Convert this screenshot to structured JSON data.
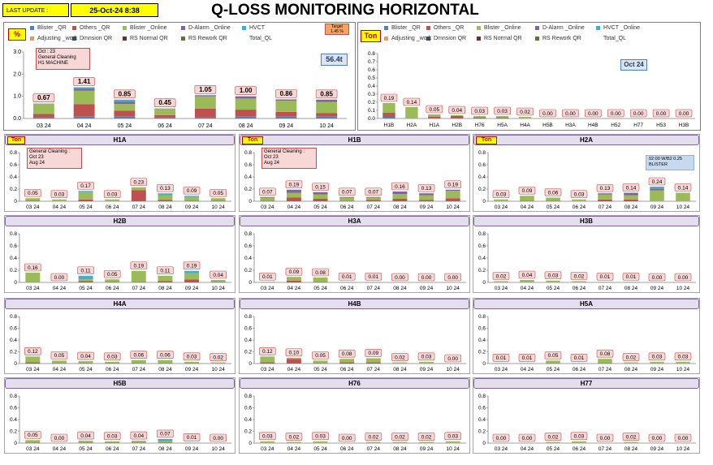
{
  "header": {
    "last_update_label": "LAST UPDATE :",
    "last_update_value": "25-Oct-24 8:38",
    "title": "Q-LOSS MONITORING HORIZONTAL"
  },
  "colors": {
    "Blister _QR": "#4f81bd",
    "Others _QR": "#c0504d",
    "Blister _Online": "#9bbb59",
    "D-Alarm _Online": "#8064a2",
    "HVCT": "#4bacc6",
    "Adjusting _work": "#f79646",
    "Dmnsion QR": "#2c4d75",
    "RS Normal QR": "#772c2a",
    "RS Rework QR": "#5f7530",
    "Total_QL": "#ffffff"
  },
  "left_legend": [
    "Blister _QR",
    "Others _QR",
    "Blister _Online",
    "D-Alarm _Online",
    "HVCT",
    "Adjusting _work",
    "Dmnsion QR",
    "RS Normal QR",
    "RS Rework QR",
    "Total_QL"
  ],
  "right_legend": [
    "Blister _QR",
    "Others _QR",
    "Blister _Online",
    "D-Alarm _Online",
    "HVCT _Online",
    "Adjusting _work",
    "Dmnsion QR",
    "RS Normal QR",
    "RS Rework QR",
    "Total_QL"
  ],
  "left_panel": {
    "unit": "%",
    "target_label": "Target",
    "target_value": "1.45 %",
    "total_value": "56.4t",
    "note": [
      "Oct : 23",
      "General Cleaning",
      "H1 MACHINE"
    ]
  },
  "right_panel": {
    "unit": "Ton",
    "month_label": "Oct 24"
  },
  "small_panels": {
    "unit": "Ton",
    "h1a_note": [
      "General Cleaning :",
      "Oct 23",
      "Aug 24"
    ],
    "h1b_note": [
      "General Cleaning :",
      "Oct 23",
      "Aug 24"
    ],
    "h2a_note": [
      "02:00 W/B2 0.25",
      "BLISTER"
    ]
  },
  "chart_data": [
    {
      "id": "overall_trend",
      "type": "bar",
      "stacked": true,
      "title": "",
      "ylabel": "%",
      "ylim": [
        0,
        3
      ],
      "yticks": [
        "0.0",
        "1.0",
        "2.0",
        "3.0"
      ],
      "categories": [
        "03 24",
        "04 24",
        "05 24",
        "06 24",
        "07 24",
        "08 24",
        "09 24",
        "10 24"
      ],
      "totals": [
        0.67,
        1.41,
        0.85,
        0.45,
        1.05,
        1.0,
        0.86,
        0.85
      ],
      "total_labels": [
        "0.67",
        "1.41",
        "0.85",
        "0.45",
        "1.05",
        "1.00",
        "0.86",
        "0.85"
      ],
      "series": [
        {
          "name": "Blister _QR",
          "values": [
            0.05,
            0.1,
            0.1,
            0.05,
            0.05,
            0.1,
            0.1,
            0.1
          ]
        },
        {
          "name": "Others _QR",
          "values": [
            0.15,
            0.55,
            0.25,
            0.1,
            0.4,
            0.3,
            0.2,
            0.15
          ]
        },
        {
          "name": "Blister _Online",
          "values": [
            0.45,
            0.6,
            0.3,
            0.28,
            0.55,
            0.5,
            0.5,
            0.5
          ]
        },
        {
          "name": "D-Alarm _Online",
          "values": [
            0.02,
            0.1,
            0.1,
            0.02,
            0.05,
            0.1,
            0.06,
            0.1
          ]
        },
        {
          "name": "HVCT",
          "values": [
            0.0,
            0.06,
            0.1,
            0.0,
            0.0,
            0.0,
            0.0,
            0.0
          ]
        }
      ]
    },
    {
      "id": "oct24_by_machine",
      "type": "bar",
      "stacked": true,
      "title": "",
      "ylabel": "Ton",
      "ylim": [
        0,
        0.8
      ],
      "yticks": [
        "0.0",
        "0.1",
        "0.2",
        "0.3",
        "0.4",
        "0.5",
        "0.6",
        "0.7",
        "0.8"
      ],
      "categories": [
        "H1B",
        "H2A",
        "H1A",
        "H2B",
        "H76",
        "H5A",
        "H4A",
        "H5B",
        "H3A",
        "H4B",
        "H52",
        "H77",
        "H53",
        "H3B"
      ],
      "totals": [
        0.19,
        0.14,
        0.05,
        0.04,
        0.03,
        0.03,
        0.02,
        0.0,
        0.0,
        0.0,
        0.0,
        0.0,
        0.0,
        0.0
      ],
      "total_labels": [
        "0.19",
        "0.14",
        "0.05",
        "0.04",
        "0.03",
        "0.03",
        "0.02",
        "0.00",
        "0.00",
        "0.00",
        "0.00",
        "0.00",
        "0.00",
        "0.00"
      ],
      "series": [
        {
          "name": "Blister _QR",
          "values": [
            0.02,
            0.0,
            0.01,
            0.01,
            0.0,
            0.01,
            0.0,
            0,
            0,
            0,
            0,
            0,
            0,
            0
          ]
        },
        {
          "name": "Others _QR",
          "values": [
            0.05,
            0.0,
            0.01,
            0.02,
            0.01,
            0.0,
            0.0,
            0,
            0,
            0,
            0,
            0,
            0,
            0
          ]
        },
        {
          "name": "Blister _Online",
          "values": [
            0.12,
            0.14,
            0.03,
            0.01,
            0.02,
            0.02,
            0.02,
            0,
            0,
            0,
            0,
            0,
            0,
            0
          ]
        }
      ]
    },
    {
      "id": "H1A",
      "type": "bar",
      "title": "H1A",
      "ylim": [
        0,
        0.8
      ],
      "yticks": [
        "0",
        "0.2",
        "0.4",
        "0.6",
        "0.8"
      ],
      "categories": [
        "03 24",
        "04 24",
        "05 24",
        "06 24",
        "07 24",
        "08 24",
        "09 24",
        "10 24"
      ],
      "totals": [
        0.05,
        0.03,
        0.17,
        0.03,
        0.23,
        0.13,
        0.09,
        0.05
      ],
      "total_labels": [
        "0.05",
        "0.03",
        "0.17",
        "0.03",
        "0.23",
        "0.13",
        "0.09",
        "0.05"
      ],
      "series": [
        {
          "name": "Others _QR",
          "values": [
            0.01,
            0.0,
            0.03,
            0.0,
            0.18,
            0.02,
            0.01,
            0.01
          ]
        },
        {
          "name": "Blister _Online",
          "values": [
            0.04,
            0.03,
            0.12,
            0.03,
            0.05,
            0.08,
            0.06,
            0.04
          ]
        },
        {
          "name": "HVCT",
          "values": [
            0,
            0,
            0.02,
            0,
            0,
            0.03,
            0.02,
            0
          ]
        }
      ]
    },
    {
      "id": "H1B",
      "type": "bar",
      "title": "H1B",
      "ylim": [
        0,
        0.8
      ],
      "yticks": [
        "0",
        "0.2",
        "0.4",
        "0.6",
        "0.8"
      ],
      "categories": [
        "03 24",
        "04 24",
        "05 24",
        "06 24",
        "07 24",
        "08 24",
        "09 24",
        "10 24"
      ],
      "totals": [
        0.07,
        0.19,
        0.15,
        0.07,
        0.07,
        0.16,
        0.13,
        0.19
      ],
      "total_labels": [
        "0.07",
        "0.19",
        "0.15",
        "0.07",
        "0.07",
        "0.16",
        "0.13",
        "0.19"
      ],
      "series": [
        {
          "name": "Others _QR",
          "values": [
            0.01,
            0.06,
            0.04,
            0.01,
            0.02,
            0.04,
            0.02,
            0.05
          ]
        },
        {
          "name": "Blister _Online",
          "values": [
            0.05,
            0.08,
            0.07,
            0.05,
            0.04,
            0.08,
            0.08,
            0.12
          ]
        },
        {
          "name": "D-Alarm _Online",
          "values": [
            0.01,
            0.05,
            0.04,
            0.01,
            0.01,
            0.04,
            0.03,
            0.02
          ]
        }
      ]
    },
    {
      "id": "H2A",
      "type": "bar",
      "title": "H2A",
      "ylim": [
        0,
        0.8
      ],
      "yticks": [
        "0",
        "0.2",
        "0.4",
        "0.6",
        "0.8"
      ],
      "categories": [
        "03 24",
        "04 24",
        "05 24",
        "06 24",
        "07 24",
        "08 24",
        "09 24",
        "10 24"
      ],
      "totals": [
        0.03,
        0.09,
        0.06,
        0.03,
        0.13,
        0.14,
        0.24,
        0.14
      ],
      "total_labels": [
        "0.03",
        "0.09",
        "0.06",
        "0.03",
        "0.13",
        "0.14",
        "0.24",
        "0.14"
      ],
      "series": [
        {
          "name": "Others _QR",
          "values": [
            0.0,
            0.01,
            0.01,
            0.0,
            0.03,
            0.03,
            0.0,
            0.0
          ]
        },
        {
          "name": "Blister _Online",
          "values": [
            0.03,
            0.08,
            0.05,
            0.03,
            0.08,
            0.07,
            0.18,
            0.14
          ]
        },
        {
          "name": "D-Alarm _Online",
          "values": [
            0,
            0,
            0,
            0,
            0.02,
            0.04,
            0.03,
            0
          ]
        },
        {
          "name": "HVCT",
          "values": [
            0,
            0,
            0,
            0,
            0,
            0,
            0.03,
            0
          ]
        }
      ]
    },
    {
      "id": "H2B",
      "type": "bar",
      "title": "H2B",
      "ylim": [
        0,
        0.8
      ],
      "yticks": [
        "0",
        "0.2",
        "0.4",
        "0.6",
        "0.8"
      ],
      "categories": [
        "03 24",
        "04 24",
        "05 24",
        "06 24",
        "07 24",
        "08 24",
        "09 24",
        "10 24"
      ],
      "totals": [
        0.16,
        0.0,
        0.11,
        0.05,
        0.19,
        0.11,
        0.19,
        0.04
      ],
      "total_labels": [
        "0.16",
        "0.00",
        "0.11",
        "0.05",
        "0.19",
        "0.11",
        "0.19",
        "0.04"
      ],
      "series": [
        {
          "name": "Others _QR",
          "values": [
            0.0,
            0.0,
            0.02,
            0.01,
            0.01,
            0.02,
            0.05,
            0.01
          ]
        },
        {
          "name": "Blister _Online",
          "values": [
            0.16,
            0.0,
            0.03,
            0.04,
            0.18,
            0.09,
            0.1,
            0.03
          ]
        },
        {
          "name": "HVCT",
          "values": [
            0,
            0,
            0.06,
            0,
            0,
            0,
            0.04,
            0
          ]
        }
      ]
    },
    {
      "id": "H3A",
      "type": "bar",
      "title": "H3A",
      "ylim": [
        0,
        0.8
      ],
      "yticks": [
        "0",
        "0.2",
        "0.4",
        "0.6",
        "0.8"
      ],
      "categories": [
        "03 24",
        "04 24",
        "05 24",
        "06 24",
        "07 24",
        "08 24",
        "09 24",
        "10 24"
      ],
      "totals": [
        0.01,
        0.09,
        0.08,
        0.01,
        0.01,
        0.0,
        0.0,
        0.0
      ],
      "total_labels": [
        "0.01",
        "0.09",
        "0.08",
        "0.01",
        "0.01",
        "0.00",
        "0.00",
        "0.00"
      ],
      "series": [
        {
          "name": "Others _QR",
          "values": [
            0.0,
            0.03,
            0.01,
            0.0,
            0.0,
            0,
            0,
            0
          ]
        },
        {
          "name": "Blister _Online",
          "values": [
            0.01,
            0.06,
            0.07,
            0.01,
            0.01,
            0,
            0,
            0
          ]
        }
      ]
    },
    {
      "id": "H3B",
      "type": "bar",
      "title": "H3B",
      "ylim": [
        0,
        0.8
      ],
      "yticks": [
        "0",
        "0.2",
        "0.4",
        "0.6",
        "0.8"
      ],
      "categories": [
        "03 24",
        "04 24",
        "05 24",
        "06 24",
        "07 24",
        "08 24",
        "09 24",
        "10 24"
      ],
      "totals": [
        0.02,
        0.04,
        0.03,
        0.02,
        0.01,
        0.01,
        0.0,
        0.0
      ],
      "total_labels": [
        "0.02",
        "0.04",
        "0.03",
        "0.02",
        "0.01",
        "0.01",
        "0.00",
        "0.00"
      ],
      "series": [
        {
          "name": "Blister _Online",
          "values": [
            0.02,
            0.04,
            0.03,
            0.02,
            0.01,
            0.01,
            0,
            0
          ]
        }
      ]
    },
    {
      "id": "H4A",
      "type": "bar",
      "title": "H4A",
      "ylim": [
        0,
        0.8
      ],
      "yticks": [
        "0",
        "0.2",
        "0.4",
        "0.6",
        "0.8"
      ],
      "categories": [
        "03 24",
        "04 24",
        "05 24",
        "06 24",
        "07 24",
        "08 24",
        "09 24",
        "10 24"
      ],
      "totals": [
        0.12,
        0.05,
        0.04,
        0.03,
        0.06,
        0.06,
        0.03,
        0.02
      ],
      "total_labels": [
        "0.12",
        "0.05",
        "0.04",
        "0.03",
        "0.06",
        "0.06",
        "0.03",
        "0.02"
      ],
      "series": [
        {
          "name": "Others _QR",
          "values": [
            0.02,
            0.01,
            0.01,
            0.01,
            0.01,
            0.01,
            0.01,
            0.0
          ]
        },
        {
          "name": "Blister _Online",
          "values": [
            0.1,
            0.04,
            0.03,
            0.02,
            0.05,
            0.05,
            0.02,
            0.02
          ]
        }
      ]
    },
    {
      "id": "H4B",
      "type": "bar",
      "title": "H4B",
      "ylim": [
        0,
        0.8
      ],
      "yticks": [
        "0",
        "0.2",
        "0.4",
        "0.6",
        "0.8"
      ],
      "categories": [
        "03 24",
        "04 24",
        "05 24",
        "06 24",
        "07 24",
        "08 24",
        "09 24",
        "10 24"
      ],
      "totals": [
        0.12,
        0.1,
        0.05,
        0.08,
        0.09,
        0.02,
        0.03,
        0.0
      ],
      "total_labels": [
        "0.12",
        "0.10",
        "0.05",
        "0.08",
        "0.09",
        "0.02",
        "0.03",
        "0.00"
      ],
      "series": [
        {
          "name": "Others _QR",
          "values": [
            0.02,
            0.08,
            0.01,
            0.02,
            0.02,
            0.0,
            0.0,
            0
          ]
        },
        {
          "name": "Blister _Online",
          "values": [
            0.1,
            0.02,
            0.04,
            0.06,
            0.07,
            0.02,
            0.03,
            0
          ]
        }
      ]
    },
    {
      "id": "H5A",
      "type": "bar",
      "title": "H5A",
      "ylim": [
        0,
        0.8
      ],
      "yticks": [
        "0",
        "0.2",
        "0.4",
        "0.6",
        "0.8"
      ],
      "categories": [
        "03 24",
        "04 24",
        "05 24",
        "06 24",
        "07 24",
        "08 24",
        "09 24",
        "10 24"
      ],
      "totals": [
        0.01,
        0.01,
        0.05,
        0.01,
        0.08,
        0.02,
        0.03,
        0.03
      ],
      "total_labels": [
        "0.01",
        "0.01",
        "0.05",
        "0.01",
        "0.08",
        "0.02",
        "0.03",
        "0.03"
      ],
      "series": [
        {
          "name": "Others _QR",
          "values": [
            0.0,
            0.0,
            0.01,
            0.0,
            0.01,
            0.0,
            0.0,
            0.0
          ]
        },
        {
          "name": "Blister _Online",
          "values": [
            0.01,
            0.01,
            0.04,
            0.01,
            0.07,
            0.02,
            0.03,
            0.03
          ]
        }
      ]
    },
    {
      "id": "H5B",
      "type": "bar",
      "title": "H5B",
      "ylim": [
        0,
        0.8
      ],
      "yticks": [
        "0",
        "0.2",
        "0.4",
        "0.6",
        "0.8"
      ],
      "categories": [
        "03 24",
        "04 24",
        "05 24",
        "06 24",
        "07 24",
        "08 24",
        "09 24",
        "10 24"
      ],
      "totals": [
        0.05,
        0.0,
        0.04,
        0.03,
        0.04,
        0.07,
        0.01,
        0.0
      ],
      "total_labels": [
        "0.05",
        "0.00",
        "0.04",
        "0.03",
        "0.04",
        "0.07",
        "0.01",
        "0.00"
      ],
      "series": [
        {
          "name": "Others _QR",
          "values": [
            0.01,
            0,
            0.01,
            0.01,
            0.01,
            0.01,
            0.0,
            0
          ]
        },
        {
          "name": "Blister _Online",
          "values": [
            0.04,
            0,
            0.03,
            0.02,
            0.03,
            0.02,
            0.01,
            0
          ]
        },
        {
          "name": "HVCT",
          "values": [
            0,
            0,
            0,
            0,
            0,
            0.04,
            0,
            0
          ]
        }
      ]
    },
    {
      "id": "H76",
      "type": "bar",
      "title": "H76",
      "ylim": [
        0,
        0.8
      ],
      "yticks": [
        "0",
        "0.2",
        "0.4",
        "0.6",
        "0.8"
      ],
      "categories": [
        "03 24",
        "04 24",
        "05 24",
        "06 24",
        "07 24",
        "08 24",
        "09 24",
        "10 24"
      ],
      "totals": [
        0.03,
        0.02,
        0.03,
        0.0,
        0.02,
        0.02,
        0.02,
        0.03
      ],
      "total_labels": [
        "0.03",
        "0.02",
        "0.03",
        "0.00",
        "0.02",
        "0.02",
        "0.02",
        "0.03"
      ],
      "series": [
        {
          "name": "Blister _Online",
          "values": [
            0.03,
            0.02,
            0.03,
            0.0,
            0.02,
            0.02,
            0.02,
            0.03
          ]
        }
      ]
    },
    {
      "id": "H77",
      "type": "bar",
      "title": "H77",
      "ylim": [
        0,
        0.8
      ],
      "yticks": [
        "0",
        "0.2",
        "0.4",
        "0.6",
        "0.8"
      ],
      "categories": [
        "03 24",
        "04 24",
        "05 24",
        "06 24",
        "07 24",
        "08 24",
        "09 24",
        "10 24"
      ],
      "totals": [
        0.0,
        0.0,
        0.02,
        0.03,
        0.0,
        0.02,
        0.0,
        0.0
      ],
      "total_labels": [
        "0.00",
        "0.00",
        "0.02",
        "0.03",
        "0.00",
        "0.02",
        "0.00",
        "0.00"
      ],
      "series": [
        {
          "name": "Blister _Online",
          "values": [
            0,
            0,
            0.02,
            0.03,
            0,
            0.02,
            0,
            0
          ]
        }
      ]
    }
  ]
}
